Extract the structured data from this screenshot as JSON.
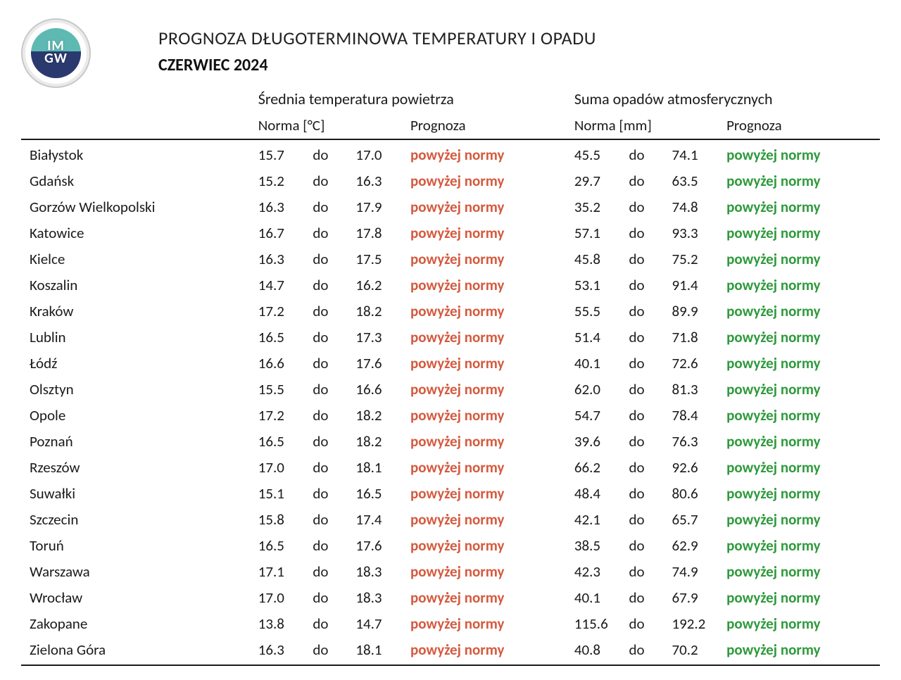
{
  "logo_text": "IM\nGW",
  "title_main": "PROGNOZA DŁUGOTERMINOWA TEMPERATURY I OPADU",
  "title_month": "CZERWIEC 2024",
  "section_temp": "Średnia temperatura powietrza",
  "section_precip": "Suma opadów atmosferycznych",
  "col_norma_c": "Norma [°C]",
  "col_norma_mm": "Norma [mm]",
  "col_prognoza": "Prognoza",
  "word_do": "do",
  "forecast_above": "powyżej normy",
  "colors": {
    "temp_forecast": "#d45a3f",
    "precip_forecast": "#2e9a3c",
    "text": "#1a1a1a",
    "background": "#ffffff"
  },
  "rows": [
    {
      "city": "Białystok",
      "t_lo": "15.7",
      "t_hi": "17.0",
      "t_fc": "powyżej normy",
      "p_lo": "45.5",
      "p_hi": "74.1",
      "p_fc": "powyżej normy"
    },
    {
      "city": "Gdańsk",
      "t_lo": "15.2",
      "t_hi": "16.3",
      "t_fc": "powyżej normy",
      "p_lo": "29.7",
      "p_hi": "63.5",
      "p_fc": "powyżej normy"
    },
    {
      "city": "Gorzów Wielkopolski",
      "t_lo": "16.3",
      "t_hi": "17.9",
      "t_fc": "powyżej normy",
      "p_lo": "35.2",
      "p_hi": "74.8",
      "p_fc": "powyżej normy"
    },
    {
      "city": "Katowice",
      "t_lo": "16.7",
      "t_hi": "17.8",
      "t_fc": "powyżej normy",
      "p_lo": "57.1",
      "p_hi": "93.3",
      "p_fc": "powyżej normy"
    },
    {
      "city": "Kielce",
      "t_lo": "16.3",
      "t_hi": "17.5",
      "t_fc": "powyżej normy",
      "p_lo": "45.8",
      "p_hi": "75.2",
      "p_fc": "powyżej normy"
    },
    {
      "city": "Koszalin",
      "t_lo": "14.7",
      "t_hi": "16.2",
      "t_fc": "powyżej normy",
      "p_lo": "53.1",
      "p_hi": "91.4",
      "p_fc": "powyżej normy"
    },
    {
      "city": "Kraków",
      "t_lo": "17.2",
      "t_hi": "18.2",
      "t_fc": "powyżej normy",
      "p_lo": "55.5",
      "p_hi": "89.9",
      "p_fc": "powyżej normy"
    },
    {
      "city": "Lublin",
      "t_lo": "16.5",
      "t_hi": "17.3",
      "t_fc": "powyżej normy",
      "p_lo": "51.4",
      "p_hi": "71.8",
      "p_fc": "powyżej normy"
    },
    {
      "city": "Łódź",
      "t_lo": "16.6",
      "t_hi": "17.6",
      "t_fc": "powyżej normy",
      "p_lo": "40.1",
      "p_hi": "72.6",
      "p_fc": "powyżej normy"
    },
    {
      "city": "Olsztyn",
      "t_lo": "15.5",
      "t_hi": "16.6",
      "t_fc": "powyżej normy",
      "p_lo": "62.0",
      "p_hi": "81.3",
      "p_fc": "powyżej normy"
    },
    {
      "city": "Opole",
      "t_lo": "17.2",
      "t_hi": "18.2",
      "t_fc": "powyżej normy",
      "p_lo": "54.7",
      "p_hi": "78.4",
      "p_fc": "powyżej normy"
    },
    {
      "city": "Poznań",
      "t_lo": "16.5",
      "t_hi": "18.2",
      "t_fc": "powyżej normy",
      "p_lo": "39.6",
      "p_hi": "76.3",
      "p_fc": "powyżej normy"
    },
    {
      "city": "Rzeszów",
      "t_lo": "17.0",
      "t_hi": "18.1",
      "t_fc": "powyżej normy",
      "p_lo": "66.2",
      "p_hi": "92.6",
      "p_fc": "powyżej normy"
    },
    {
      "city": "Suwałki",
      "t_lo": "15.1",
      "t_hi": "16.5",
      "t_fc": "powyżej normy",
      "p_lo": "48.4",
      "p_hi": "80.6",
      "p_fc": "powyżej normy"
    },
    {
      "city": "Szczecin",
      "t_lo": "15.8",
      "t_hi": "17.4",
      "t_fc": "powyżej normy",
      "p_lo": "42.1",
      "p_hi": "65.7",
      "p_fc": "powyżej normy"
    },
    {
      "city": "Toruń",
      "t_lo": "16.5",
      "t_hi": "17.6",
      "t_fc": "powyżej normy",
      "p_lo": "38.5",
      "p_hi": "62.9",
      "p_fc": "powyżej normy"
    },
    {
      "city": "Warszawa",
      "t_lo": "17.1",
      "t_hi": "18.3",
      "t_fc": "powyżej normy",
      "p_lo": "42.3",
      "p_hi": "74.9",
      "p_fc": "powyżej normy"
    },
    {
      "city": "Wrocław",
      "t_lo": "17.0",
      "t_hi": "18.3",
      "t_fc": "powyżej normy",
      "p_lo": "40.1",
      "p_hi": "67.9",
      "p_fc": "powyżej normy"
    },
    {
      "city": "Zakopane",
      "t_lo": "13.8",
      "t_hi": "14.7",
      "t_fc": "powyżej normy",
      "p_lo": "115.6",
      "p_hi": "192.2",
      "p_fc": "powyżej normy"
    },
    {
      "city": "Zielona Góra",
      "t_lo": "16.3",
      "t_hi": "18.1",
      "t_fc": "powyżej normy",
      "p_lo": "40.8",
      "p_hi": "70.2",
      "p_fc": "powyżej normy"
    }
  ]
}
